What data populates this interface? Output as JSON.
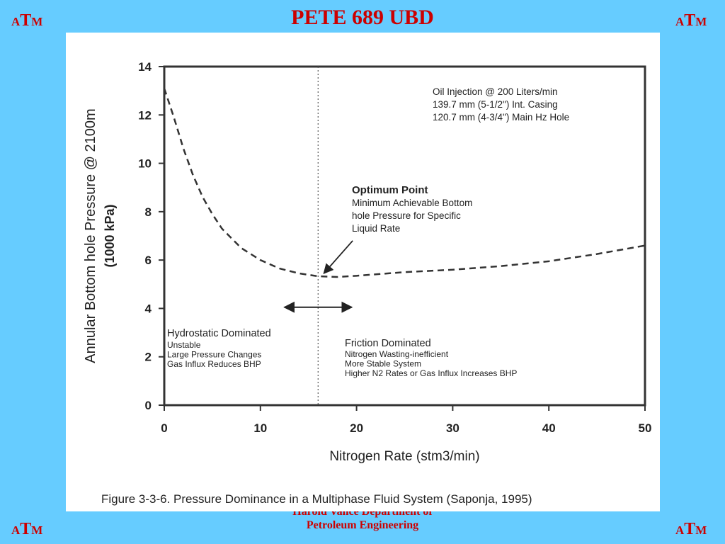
{
  "slide": {
    "title": "PETE 689 UBD",
    "logo": {
      "a": "A",
      "t": "T",
      "m": "M"
    },
    "footer_line1": "Harold Vance Department of",
    "footer_line2": "Petroleum Engineering"
  },
  "chart_data": {
    "type": "line",
    "title": "",
    "caption": "Figure 3-3-6. Pressure Dominance in a Multiphase Fluid System (Saponja, 1995)",
    "xlabel": "Nitrogen Rate (stm3/min)",
    "ylabel_line1": "Annular  Bottom hole Pressure @ 2100m",
    "ylabel_line2": "(1000 kPa)",
    "xlim": [
      0,
      50
    ],
    "ylim": [
      0,
      14
    ],
    "x_ticks": [
      0,
      10,
      20,
      30,
      40,
      50
    ],
    "y_ticks": [
      0,
      2,
      4,
      6,
      8,
      10,
      12,
      14
    ],
    "grid": false,
    "line_style": "dashed",
    "series": [
      {
        "x": [
          0,
          1,
          2,
          3,
          4,
          5,
          6,
          8,
          10,
          12,
          14,
          16,
          18,
          20,
          25,
          30,
          35,
          40,
          45,
          50
        ],
        "y": [
          13.1,
          11.9,
          10.6,
          9.5,
          8.6,
          7.9,
          7.3,
          6.5,
          6.0,
          5.65,
          5.45,
          5.33,
          5.3,
          5.35,
          5.5,
          5.6,
          5.75,
          5.95,
          6.25,
          6.6
        ]
      }
    ],
    "divider_x": 16,
    "optimum_x": 16.3,
    "optimum_y": 5.3,
    "annotations": {
      "conditions": [
        "Oil Injection @ 200 Liters/min",
        "139.7 mm (5-1/2\") Int. Casing",
        "120.7 mm (4-3/4\") Main Hz Hole"
      ],
      "optimum_title": "Optimum Point",
      "optimum_desc": [
        "Minimum Achievable Bottom",
        "hole Pressure for Specific",
        "Liquid Rate"
      ],
      "left_title": "Hydrostatic Dominated",
      "left_items": [
        "Unstable",
        "Large Pressure Changes",
        "Gas Influx Reduces BHP"
      ],
      "right_title": "Friction Dominated",
      "right_items": [
        "Nitrogen Wasting-inefficient",
        "More Stable System",
        "Higher N2 Rates or Gas Influx Increases BHP"
      ]
    }
  }
}
